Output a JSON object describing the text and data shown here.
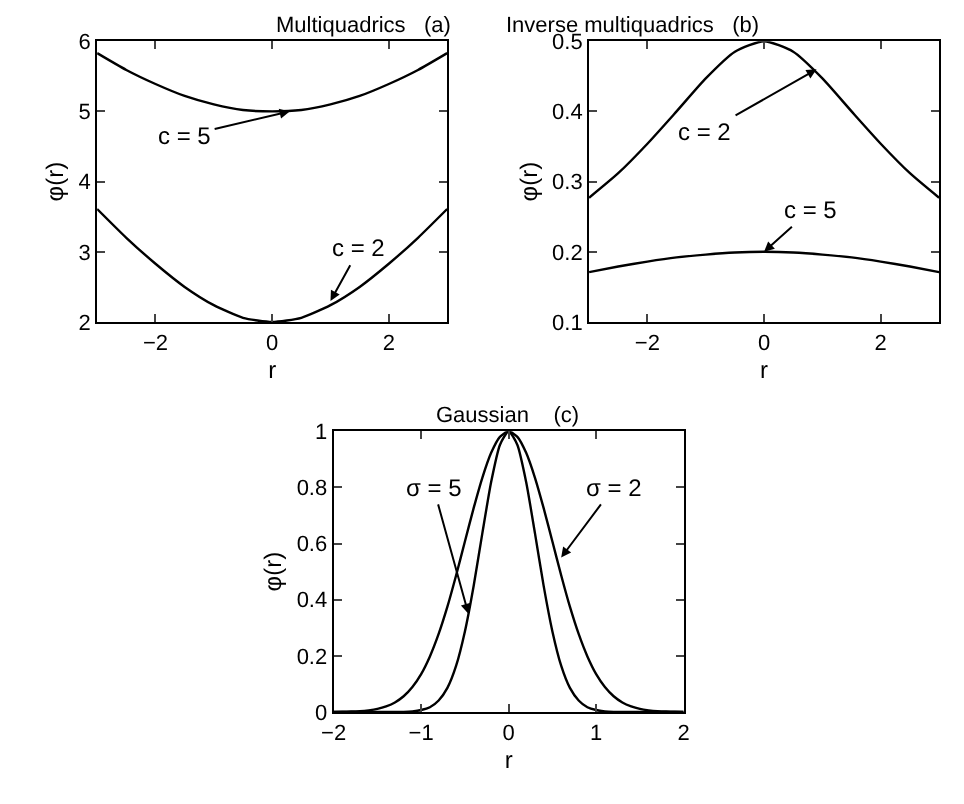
{
  "chart_data": [
    {
      "type": "line",
      "title": "Multiquadrics   (a)",
      "xlabel": "r",
      "ylabel": "φ(r)",
      "x": [
        -3,
        -2.5,
        -2,
        -1.5,
        -1,
        -0.5,
        0,
        0.5,
        1,
        1.5,
        2,
        2.5,
        3
      ],
      "series": [
        {
          "color": "#000000",
          "values": [
            5.83,
            5.59,
            5.39,
            5.22,
            5.1,
            5.02,
            5,
            5.02,
            5.1,
            5.22,
            5.39,
            5.59,
            5.83
          ]
        },
        {
          "color": "#000000",
          "values": [
            3.61,
            3.2,
            2.83,
            2.5,
            2.24,
            2.06,
            2,
            2.06,
            2.24,
            2.5,
            2.83,
            3.2,
            3.61
          ]
        }
      ],
      "xlim": [
        -3,
        3
      ],
      "xticks": [
        -2,
        0,
        2
      ],
      "ylim": [
        2,
        6
      ],
      "yticks": [
        2,
        3,
        4,
        5,
        6
      ],
      "marker": "none",
      "line_style": "solid",
      "annotations": [
        {
          "text": "c = 5",
          "x": 0.3,
          "y": 5.0
        },
        {
          "text": "c = 2",
          "x": 1.0,
          "y": 2.3
        }
      ]
    },
    {
      "type": "line",
      "title": "Inverse multiquadrics   (b)",
      "xlabel": "r",
      "ylabel": "φ(r)",
      "x": [
        -3,
        -2.5,
        -2,
        -1.5,
        -1,
        -0.5,
        0,
        0.5,
        1,
        1.5,
        2,
        2.5,
        3
      ],
      "series": [
        {
          "color": "#000000",
          "values": [
            0.277,
            0.312,
            0.354,
            0.4,
            0.447,
            0.485,
            0.5,
            0.485,
            0.447,
            0.4,
            0.354,
            0.312,
            0.277
          ]
        },
        {
          "color": "#000000",
          "values": [
            0.171,
            0.179,
            0.186,
            0.192,
            0.196,
            0.199,
            0.2,
            0.199,
            0.196,
            0.192,
            0.186,
            0.179,
            0.171
          ]
        }
      ],
      "xlim": [
        -3,
        3
      ],
      "xticks": [
        -2,
        0,
        2
      ],
      "ylim": [
        0.1,
        0.5
      ],
      "yticks": [
        0.1,
        0.2,
        0.3,
        0.4,
        0.5
      ],
      "marker": "none",
      "line_style": "solid",
      "annotations": [
        {
          "text": "c = 2",
          "x": 0.9,
          "y": 0.46
        },
        {
          "text": "c = 5",
          "x": 0.0,
          "y": 0.2
        }
      ]
    },
    {
      "type": "line",
      "title": "Gaussian    (c)",
      "xlabel": "r",
      "ylabel": "φ(r)",
      "x": [
        -2,
        -1.9,
        -1.8,
        -1.7,
        -1.6,
        -1.5,
        -1.4,
        -1.3,
        -1.2,
        -1.1,
        -1,
        -0.9,
        -0.8,
        -0.7,
        -0.6,
        -0.5,
        -0.4,
        -0.3,
        -0.2,
        -0.1,
        0,
        0.1,
        0.2,
        0.3,
        0.4,
        0.5,
        0.6,
        0.7,
        0.8,
        0.9,
        1,
        1.1,
        1.2,
        1.3,
        1.4,
        1.5,
        1.6,
        1.7,
        1.8,
        1.9,
        2
      ],
      "series": [
        {
          "color": "#000000",
          "values": [
            0,
            0,
            0,
            0,
            0,
            0,
            0,
            0,
            0,
            0.002,
            0.007,
            0.017,
            0.041,
            0.086,
            0.165,
            0.287,
            0.449,
            0.638,
            0.819,
            0.951,
            1,
            0.951,
            0.819,
            0.638,
            0.449,
            0.287,
            0.165,
            0.086,
            0.041,
            0.017,
            0.007,
            0.002,
            0,
            0,
            0,
            0,
            0,
            0,
            0,
            0,
            0
          ]
        },
        {
          "color": "#000000",
          "values": [
            0,
            0.001,
            0.002,
            0.003,
            0.006,
            0.011,
            0.02,
            0.034,
            0.056,
            0.089,
            0.135,
            0.198,
            0.278,
            0.375,
            0.487,
            0.607,
            0.726,
            0.835,
            0.923,
            0.98,
            1,
            0.98,
            0.923,
            0.835,
            0.726,
            0.607,
            0.487,
            0.375,
            0.278,
            0.198,
            0.135,
            0.089,
            0.056,
            0.034,
            0.02,
            0.011,
            0.006,
            0.003,
            0.002,
            0.001,
            0
          ]
        }
      ],
      "xlim": [
        -2,
        2
      ],
      "xticks": [
        -2,
        -1,
        0,
        1,
        2
      ],
      "ylim": [
        0,
        1
      ],
      "yticks": [
        0,
        0.2,
        0.4,
        0.6,
        0.8,
        1
      ],
      "marker": "none",
      "line_style": "solid",
      "annotations": [
        {
          "text": "σ = 5",
          "x": -0.46,
          "y": 0.35
        },
        {
          "text": "σ = 2",
          "x": 0.6,
          "y": 0.55
        }
      ]
    }
  ]
}
